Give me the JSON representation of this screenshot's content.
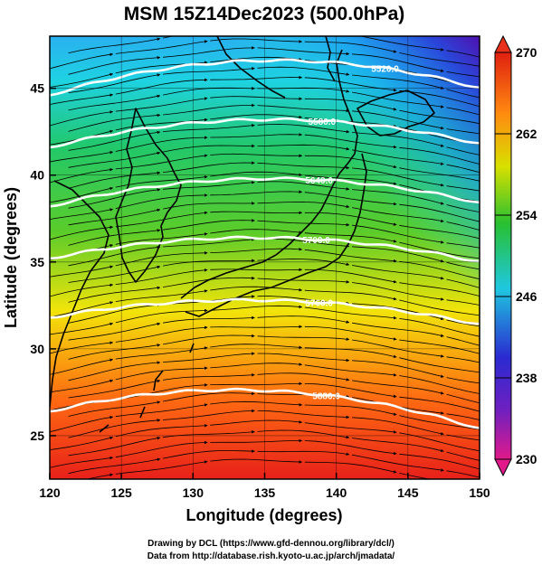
{
  "title": "MSM 15Z14Dec2023 (500.0hPa)",
  "map": {
    "x_axis": {
      "label": "Longitude (degrees)",
      "range": [
        120,
        150
      ],
      "ticks": [
        120,
        125,
        130,
        135,
        140,
        145,
        150
      ],
      "tick_labels": [
        "120",
        "125",
        "130",
        "135",
        "140",
        "145",
        "150"
      ]
    },
    "y_axis": {
      "label": "Latitude  (degrees)",
      "range": [
        22.5,
        48
      ],
      "ticks": [
        25,
        30,
        35,
        40,
        45
      ],
      "tick_labels": [
        "25",
        "30",
        "35",
        "40",
        "45"
      ]
    },
    "colorbar": {
      "min": 230,
      "max": 270,
      "labels": [
        "270",
        "262",
        "254",
        "246",
        "238",
        "230"
      ],
      "label_values": [
        270,
        262,
        254,
        246,
        238,
        230
      ],
      "colors": [
        "#e01a8a",
        "#2a2ad0",
        "#1fc7e0",
        "#28c030",
        "#f0e000",
        "#ff7a10",
        "#e02010"
      ]
    },
    "contours": [
      {
        "label": "5880.0",
        "lat_west": 26.4,
        "lat_mid": 27.6,
        "lat_east": 25.4,
        "label_lon": 139.3
      },
      {
        "label": "5760.0",
        "lat_west": 31.8,
        "lat_mid": 32.8,
        "lat_east": 31.4,
        "label_lon": 138.8
      },
      {
        "label": "5700.0",
        "lat_west": 35.2,
        "lat_mid": 36.4,
        "lat_east": 35.0,
        "label_lon": 138.6
      },
      {
        "label": "5640.0",
        "lat_west": 38.2,
        "lat_mid": 39.8,
        "lat_east": 38.4,
        "label_lon": 138.8
      },
      {
        "label": "5580.0",
        "lat_west": 41.6,
        "lat_mid": 43.2,
        "lat_east": 41.8,
        "label_lon": 139.0
      },
      {
        "label": "5520.0",
        "lat_west": 44.6,
        "lat_mid": 46.6,
        "lat_east": 45.0,
        "label_lon": 143.4
      }
    ]
  },
  "credits": {
    "line1": "Drawing by DCL (https://www.gfd-dennou.org/library/dcl/)",
    "line2": "Data from http://database.rish.kyoto-u.ac.jp/arch/jmadata/"
  }
}
